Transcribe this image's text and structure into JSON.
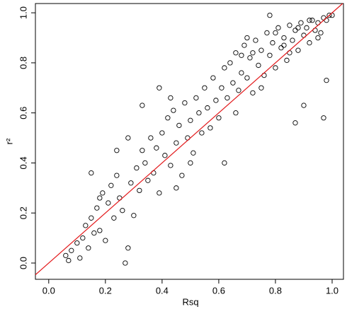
{
  "chart_data": {
    "type": "scatter",
    "x_label": "Rsq",
    "y_label": "r²",
    "xlim": [
      -0.047,
      1.04
    ],
    "ylim": [
      -0.065,
      1.037
    ],
    "xticks": [
      {
        "value": 0,
        "label": "0.0"
      },
      0.2,
      0.4,
      0.6,
      0.8,
      {
        "value": 1,
        "label": "1.0"
      }
    ],
    "yticks": [
      {
        "value": 0,
        "label": "0.0"
      },
      0.2,
      0.4,
      0.6,
      0.8,
      {
        "value": 1,
        "label": "1.0"
      }
    ],
    "color": "#000000",
    "diagonal": true,
    "diagonal_color": "#e31a1c",
    "x": [
      0.06,
      0.07,
      0.08,
      0.1,
      0.11,
      0.12,
      0.13,
      0.14,
      0.15,
      0.16,
      0.17,
      0.18,
      0.19,
      0.2,
      0.21,
      0.22,
      0.23,
      0.24,
      0.25,
      0.26,
      0.27,
      0.28,
      0.15,
      0.18,
      0.29,
      0.3,
      0.31,
      0.32,
      0.33,
      0.34,
      0.35,
      0.36,
      0.37,
      0.38,
      0.39,
      0.4,
      0.41,
      0.42,
      0.43,
      0.44,
      0.45,
      0.46,
      0.47,
      0.48,
      0.49,
      0.5,
      0.51,
      0.52,
      0.53,
      0.54,
      0.55,
      0.56,
      0.57,
      0.58,
      0.59,
      0.6,
      0.33,
      0.43,
      0.39,
      0.5,
      0.28,
      0.24,
      0.62,
      0.45,
      0.61,
      0.62,
      0.63,
      0.64,
      0.65,
      0.66,
      0.67,
      0.68,
      0.69,
      0.7,
      0.71,
      0.72,
      0.73,
      0.74,
      0.75,
      0.76,
      0.77,
      0.78,
      0.79,
      0.8,
      0.81,
      0.82,
      0.83,
      0.84,
      0.85,
      0.86,
      0.87,
      0.88,
      0.89,
      0.9,
      0.91,
      0.92,
      0.93,
      0.94,
      0.95,
      0.96,
      0.97,
      0.98,
      0.99,
      1.0,
      0.78,
      0.9,
      0.97,
      0.87,
      0.98,
      0.66,
      0.7,
      0.75,
      0.8,
      0.85,
      0.92,
      0.95,
      0.88,
      0.83,
      0.72,
      0.68
    ],
    "y": [
      0.03,
      0.01,
      0.05,
      0.08,
      0.02,
      0.1,
      0.15,
      0.06,
      0.18,
      0.12,
      0.22,
      0.13,
      0.28,
      0.09,
      0.24,
      0.31,
      0.18,
      0.35,
      0.26,
      0.21,
      0.0,
      0.06,
      0.36,
      0.26,
      0.32,
      0.19,
      0.38,
      0.29,
      0.45,
      0.4,
      0.33,
      0.5,
      0.36,
      0.46,
      0.28,
      0.52,
      0.43,
      0.58,
      0.39,
      0.61,
      0.48,
      0.55,
      0.35,
      0.64,
      0.5,
      0.57,
      0.44,
      0.66,
      0.6,
      0.52,
      0.7,
      0.62,
      0.54,
      0.74,
      0.65,
      0.58,
      0.63,
      0.66,
      0.7,
      0.4,
      0.5,
      0.45,
      0.4,
      0.3,
      0.7,
      0.78,
      0.66,
      0.8,
      0.72,
      0.84,
      0.69,
      0.76,
      0.87,
      0.74,
      0.82,
      0.68,
      0.89,
      0.79,
      0.85,
      0.75,
      0.92,
      0.83,
      0.88,
      0.78,
      0.94,
      0.86,
      0.9,
      0.81,
      0.95,
      0.89,
      0.93,
      0.85,
      0.96,
      0.91,
      0.94,
      0.88,
      0.97,
      0.93,
      0.96,
      0.92,
      0.98,
      0.97,
      0.99,
      0.99,
      0.99,
      0.63,
      0.58,
      0.56,
      0.73,
      0.6,
      0.9,
      0.7,
      0.92,
      0.84,
      0.97,
      0.9,
      0.94,
      0.87,
      0.84,
      0.83
    ]
  }
}
